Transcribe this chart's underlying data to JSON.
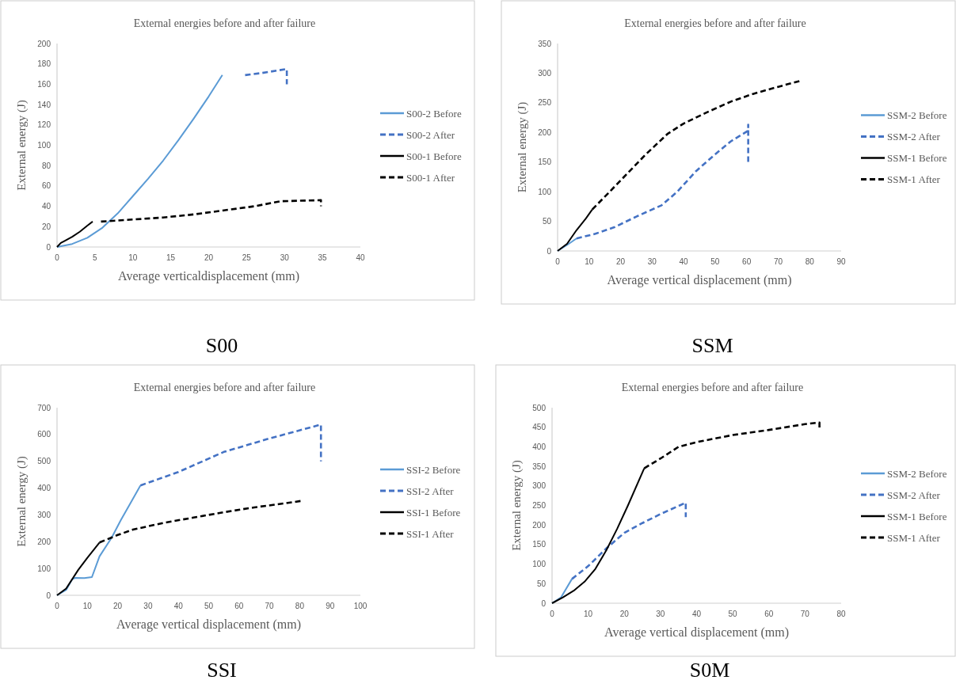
{
  "chart_data": [
    {
      "type": "line",
      "title": "External energies before and after failure",
      "xlabel": "Average verticaldisplacement (mm)",
      "ylabel": "External energy (J)",
      "annotations": [
        "S00"
      ],
      "xlim": [
        0,
        40
      ],
      "xticks": [
        0,
        5,
        10,
        15,
        20,
        25,
        30,
        35,
        40
      ],
      "ylim": [
        0,
        200
      ],
      "yticks": [
        0,
        20,
        40,
        60,
        80,
        100,
        120,
        140,
        160,
        180,
        200
      ],
      "grid": false,
      "legend": "right",
      "series": [
        {
          "name": "S00-2 Before",
          "color": "#5b9bd5",
          "line_style": "solid",
          "x": [
            0,
            2,
            4,
            6,
            8,
            10,
            12,
            14,
            16,
            18,
            20,
            21.8
          ],
          "values": [
            0,
            3,
            9,
            19,
            33,
            50,
            67,
            85,
            105,
            126,
            148,
            169
          ]
        },
        {
          "name": "S00-2 After",
          "color": "#4472c4",
          "line_style": "dashed",
          "x": [
            24.8,
            27,
            30.3,
            30.3
          ],
          "values": [
            169,
            171,
            175,
            160
          ]
        },
        {
          "name": "S00-1 Before",
          "color": "#000000",
          "line_style": "solid",
          "x": [
            0,
            0.5,
            1,
            2,
            3,
            4,
            4.7
          ],
          "values": [
            0,
            4,
            6,
            10,
            15,
            21,
            25
          ]
        },
        {
          "name": "S00-1 After",
          "color": "#000000",
          "line_style": "dashed",
          "x": [
            5.8,
            10,
            14,
            18,
            22,
            26,
            29.5,
            34.8,
            34.8
          ],
          "values": [
            25,
            27,
            29,
            32,
            36,
            40,
            45,
            46,
            40
          ]
        }
      ]
    },
    {
      "type": "line",
      "title": "External energies before and after failure",
      "xlabel": "Average vertical displacement (mm)",
      "ylabel": "External energy (J)",
      "annotations": [
        "SSM"
      ],
      "xlim": [
        0,
        90
      ],
      "xticks": [
        0,
        10,
        20,
        30,
        40,
        50,
        60,
        70,
        80,
        90
      ],
      "ylim": [
        0,
        350
      ],
      "yticks": [
        0,
        50,
        100,
        150,
        200,
        250,
        300,
        350
      ],
      "grid": false,
      "legend": "right",
      "series": [
        {
          "name": "SSM-2 Before",
          "color": "#5b9bd5",
          "line_style": "solid",
          "x": [
            0,
            3,
            6
          ],
          "values": [
            0,
            10,
            21
          ]
        },
        {
          "name": "SSM-2 After",
          "color": "#4472c4",
          "line_style": "dashed",
          "x": [
            6,
            12,
            18,
            25,
            33,
            38,
            44,
            50,
            55,
            60.5,
            60.5,
            60.5
          ],
          "values": [
            21,
            29,
            40,
            58,
            77,
            100,
            135,
            163,
            185,
            203,
            213,
            150
          ]
        },
        {
          "name": "SSM-1 Before",
          "color": "#000000",
          "line_style": "solid",
          "x": [
            0,
            3,
            6,
            9,
            11
          ],
          "values": [
            0,
            12,
            35,
            55,
            70
          ]
        },
        {
          "name": "SSM-1 After",
          "color": "#000000",
          "line_style": "dashed",
          "x": [
            11,
            16,
            22,
            28,
            35,
            40,
            47,
            55,
            62,
            70,
            77
          ],
          "values": [
            70,
            97,
            130,
            163,
            198,
            215,
            233,
            252,
            265,
            277,
            287
          ]
        }
      ]
    },
    {
      "type": "line",
      "title": "External energies before and after failure",
      "xlabel": "Average vertical displacement (mm)",
      "ylabel": "External energy (J)",
      "annotations": [
        "SSI"
      ],
      "xlim": [
        0,
        100
      ],
      "xticks": [
        0,
        10,
        20,
        30,
        40,
        50,
        60,
        70,
        80,
        90,
        100
      ],
      "ylim": [
        0,
        700
      ],
      "yticks": [
        0,
        100,
        200,
        300,
        400,
        500,
        600,
        700
      ],
      "grid": false,
      "legend": "right",
      "series": [
        {
          "name": "SSI-2 Before",
          "color": "#5b9bd5",
          "line_style": "solid",
          "x": [
            0,
            3,
            5,
            6,
            9,
            11.5,
            14,
            18,
            21,
            24,
            27.5
          ],
          "values": [
            0,
            20,
            60,
            65,
            64,
            68,
            145,
            215,
            280,
            340,
            410
          ]
        },
        {
          "name": "SSI-2 After",
          "color": "#4472c4",
          "line_style": "dashed",
          "x": [
            27.5,
            40,
            55,
            70,
            87,
            87
          ],
          "values": [
            410,
            460,
            535,
            585,
            637,
            500
          ]
        },
        {
          "name": "SSI-1 Before",
          "color": "#000000",
          "line_style": "solid",
          "x": [
            0,
            3,
            7,
            10,
            14
          ],
          "values": [
            0,
            25,
            95,
            140,
            197
          ]
        },
        {
          "name": "SSI-1 After",
          "color": "#000000",
          "line_style": "dashed",
          "x": [
            14,
            20,
            25,
            35,
            45,
            55,
            65,
            75,
            81
          ],
          "values": [
            197,
            225,
            245,
            270,
            290,
            310,
            328,
            343,
            353
          ]
        }
      ]
    },
    {
      "type": "line",
      "title": "External energies before and after failure",
      "xlabel": "Average vertical displacement (mm)",
      "ylabel": "External energy (J)",
      "annotations": [
        "S0M"
      ],
      "xlim": [
        0,
        80
      ],
      "xticks": [
        0,
        10,
        20,
        30,
        40,
        50,
        60,
        70,
        80
      ],
      "ylim": [
        0,
        500
      ],
      "yticks": [
        0,
        50,
        100,
        150,
        200,
        250,
        300,
        350,
        400,
        450,
        500
      ],
      "grid": false,
      "legend": "right",
      "series": [
        {
          "name": "SSM-2 Before",
          "color": "#5b9bd5",
          "line_style": "solid",
          "x": [
            0,
            2.5,
            5.5
          ],
          "values": [
            0,
            15,
            62
          ]
        },
        {
          "name": "SSM-2 After",
          "color": "#4472c4",
          "line_style": "dashed",
          "x": [
            5.5,
            10,
            15,
            20,
            25,
            30,
            37,
            37
          ],
          "values": [
            62,
            95,
            140,
            180,
            205,
            228,
            257,
            220
          ]
        },
        {
          "name": "SSM-1 Before",
          "color": "#000000",
          "line_style": "solid",
          "x": [
            0,
            3,
            6,
            9,
            12,
            15,
            18,
            21,
            25.5
          ],
          "values": [
            0,
            15,
            32,
            55,
            88,
            135,
            190,
            250,
            345
          ]
        },
        {
          "name": "SSM-1 After",
          "color": "#000000",
          "line_style": "dashed",
          "x": [
            25.5,
            30,
            35,
            40,
            50,
            60,
            70,
            74,
            74
          ],
          "values": [
            345,
            370,
            400,
            412,
            430,
            443,
            458,
            462,
            448
          ]
        }
      ]
    }
  ]
}
